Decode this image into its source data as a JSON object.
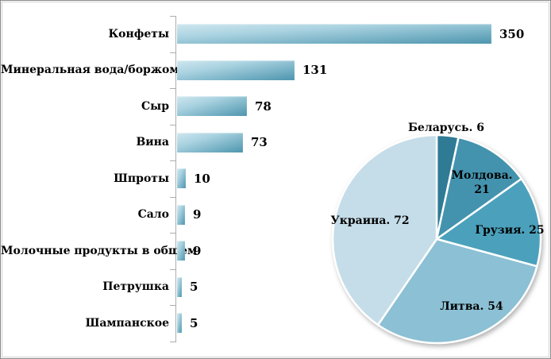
{
  "frame": {
    "background": "#ffffff",
    "border_color": "#8a8a8a"
  },
  "chart_data": [
    {
      "type": "bar",
      "orientation": "horizontal",
      "categories": [
        "Конфеты",
        "Минеральная вода/боржоми",
        "Сыр",
        "Вина",
        "Шпроты",
        "Сало",
        "Молочные продукты в общем",
        "Петрушка",
        "Шампанское"
      ],
      "values": [
        350,
        131,
        78,
        73,
        10,
        9,
        9,
        5,
        5
      ],
      "value_labels": [
        "350",
        "131",
        "78",
        "73",
        "10",
        "9",
        "9",
        "5",
        "5"
      ],
      "xlim": [
        0,
        350
      ],
      "title": "",
      "xlabel": "",
      "ylabel": "",
      "grid": false,
      "legend": false,
      "axis_color": "#adadad",
      "bar_gradient": [
        "#cfe7ef",
        "#a9d2e0",
        "#4d95ae"
      ],
      "label_color": "#000000"
    },
    {
      "type": "pie",
      "categories": [
        "Беларусь",
        "Молдова",
        "Грузия",
        "Литва",
        "Украина"
      ],
      "values": [
        6,
        21,
        25,
        54,
        72
      ],
      "labels": [
        "Беларусь. 6",
        "Молдова. 21",
        "Грузия. 25",
        "Литва. 54",
        "Украина. 72"
      ],
      "colors": [
        "#2f7b96",
        "#4493ae",
        "#4ba1bc",
        "#8cc0d4",
        "#c5dde8"
      ],
      "slice_border_color": "#ffffff",
      "start_angle_deg": -90,
      "direction": "clockwise",
      "title": "",
      "legend": false,
      "total": 178
    }
  ]
}
